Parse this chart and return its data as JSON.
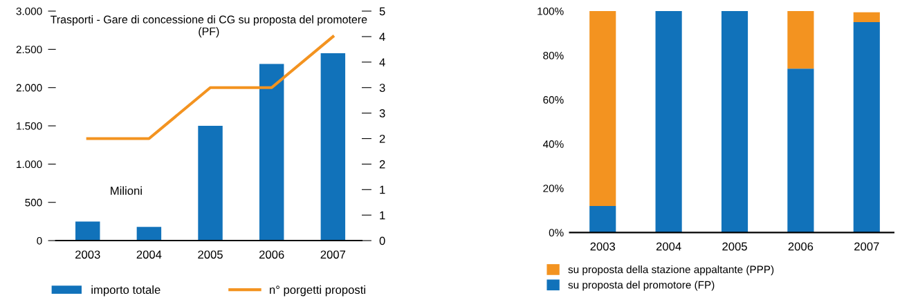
{
  "chart_data": [
    {
      "type": "bar",
      "title": "Trasporti - Gare di concessione di CG su proposta del promotere\n(PF)",
      "categories": [
        "2003",
        "2004",
        "2005",
        "2006",
        "2007"
      ],
      "series": [
        {
          "name": "importo totale",
          "type": "bar",
          "color": "#1172ba",
          "values": [
            250,
            180,
            1500,
            2310,
            2450
          ]
        },
        {
          "name": "n° porgetti proposti",
          "type": "line",
          "axis": "y2",
          "color": "#f39320",
          "values": [
            2,
            2,
            3,
            3,
            4
          ]
        }
      ],
      "ylim": [
        0,
        3000
      ],
      "yticks": [
        {
          "value": 0,
          "label": "0"
        },
        {
          "value": 500,
          "label": "500"
        },
        {
          "value": 1000,
          "label": "1.000"
        },
        {
          "value": 1500,
          "label": "1.500"
        },
        {
          "value": 2000,
          "label": "2.000"
        },
        {
          "value": 2500,
          "label": "2.500"
        },
        {
          "value": 3000,
          "label": "3.000"
        }
      ],
      "y2lim": [
        0,
        4.5
      ],
      "y2ticks": [
        0,
        {
          "value": 0.5,
          "label": "1"
        },
        1,
        {
          "value": 1.5,
          "label": "2"
        },
        2,
        {
          "value": 2.5,
          "label": "3"
        },
        3,
        {
          "value": 3.5,
          "label": "4"
        },
        4,
        {
          "value": 4.5,
          "label": "5"
        }
      ],
      "annotations": [
        "Milioni"
      ],
      "legend": "bottom",
      "grid": false
    },
    {
      "type": "bar",
      "stacked": true,
      "categories": [
        "2003",
        "2004",
        "2005",
        "2006",
        "2007"
      ],
      "series": [
        {
          "name": "su proposta del promotore (FP)",
          "color": "#1172ba",
          "values": [
            12,
            100,
            100,
            74,
            95
          ]
        },
        {
          "name": "su proposta della stazione appaltante (PPP)",
          "color": "#f39320",
          "values": [
            88,
            0,
            0,
            26,
            4.5
          ]
        }
      ],
      "ylim": [
        0,
        100
      ],
      "yticks": [
        {
          "value": 0,
          "label": "0%"
        },
        {
          "value": 20,
          "label": "20%"
        },
        {
          "value": 40,
          "label": "40%"
        },
        {
          "value": 60,
          "label": "60%"
        },
        {
          "value": 80,
          "label": "80%"
        },
        {
          "value": 100,
          "label": "100%"
        }
      ],
      "legend": "bottom left",
      "grid": false
    }
  ]
}
